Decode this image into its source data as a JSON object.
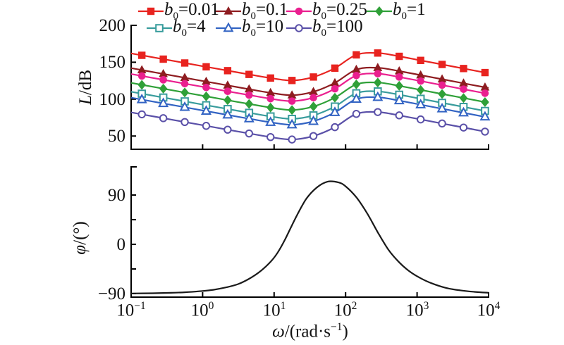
{
  "figure": {
    "background": "#ffffff",
    "text_color": "#111111",
    "axis_color": "#000000"
  },
  "x_axis": {
    "scale": "log",
    "base": "10",
    "tick_exponents": [
      -1,
      0,
      1,
      2,
      3,
      4
    ],
    "tick_labels": [
      "−1",
      "0",
      "1",
      "2",
      "3",
      "4"
    ],
    "label": {
      "var": "ω",
      "mid": "/(rad·s",
      "sup": "−1",
      "end": ")"
    }
  },
  "chart_data": [
    {
      "type": "line",
      "name": "magnitude",
      "ylabel": {
        "var": "L",
        "rest": "/dB"
      },
      "ylim": [
        32,
        200
      ],
      "yticks": [
        {
          "value": 200,
          "label": "200"
        },
        {
          "value": 150,
          "label": "150"
        },
        {
          "value": 100,
          "label": "100"
        },
        {
          "value": 50,
          "label": "50"
        }
      ],
      "endpoint_exponents": [
        -1,
        4
      ],
      "marker_exponents": [
        -0.85,
        -0.55,
        -0.25,
        0.05,
        0.35,
        0.65,
        0.95,
        1.25,
        1.55,
        1.85,
        2.15,
        2.45,
        2.75,
        3.05,
        3.35,
        3.65,
        3.95
      ],
      "series": [
        {
          "var": "b",
          "sub": "0",
          "eq": "=",
          "value": "0.01",
          "color": "#e8231f",
          "marker": "square-filled",
          "endpoints": [
            162.0,
            135.2
          ],
          "L_values": [
            159.4,
            154.2,
            149.0,
            143.8,
            138.6,
            133.5,
            128.6,
            125.3,
            130.0,
            142.0,
            160.0,
            162.5,
            158.0,
            152.5,
            147.0,
            141.5,
            136.0
          ]
        },
        {
          "var": "b",
          "sub": "0",
          "eq": "=",
          "value": "0.1",
          "color": "#8e1c20",
          "marker": "triangle-filled",
          "endpoints": [
            142.0,
            115.2
          ],
          "L_values": [
            139.4,
            134.2,
            129.0,
            123.8,
            118.6,
            113.5,
            108.6,
            105.3,
            110.0,
            122.0,
            140.0,
            142.5,
            138.0,
            132.5,
            127.0,
            121.5,
            116.0
          ]
        },
        {
          "var": "b",
          "sub": "0",
          "eq": "=",
          "value": "0.25",
          "color": "#ea1f8f",
          "marker": "circle-filled",
          "endpoints": [
            134.0,
            107.2
          ],
          "L_values": [
            131.4,
            126.2,
            121.0,
            115.8,
            110.6,
            105.5,
            100.6,
            97.3,
            102.0,
            114.0,
            132.0,
            134.5,
            130.0,
            124.5,
            119.0,
            113.5,
            108.0
          ]
        },
        {
          "var": "b",
          "sub": "0",
          "eq": "=",
          "value": "1",
          "color": "#2fa038",
          "marker": "diamond-filled",
          "endpoints": [
            122.0,
            95.2
          ],
          "L_values": [
            119.4,
            114.2,
            109.0,
            103.8,
            98.6,
            93.5,
            88.6,
            85.3,
            90.0,
            102.0,
            120.0,
            122.5,
            118.0,
            112.5,
            107.0,
            101.5,
            96.0
          ]
        },
        {
          "var": "b",
          "sub": "0",
          "eq": "=",
          "value": "4",
          "color": "#389c9c",
          "marker": "square-open",
          "endpoints": [
            110.0,
            83.2
          ],
          "L_values": [
            107.4,
            102.2,
            97.0,
            91.8,
            86.6,
            81.5,
            76.6,
            73.3,
            78.0,
            90.0,
            108.0,
            110.5,
            106.0,
            100.5,
            95.0,
            89.5,
            84.0
          ]
        },
        {
          "var": "b",
          "sub": "0",
          "eq": "=",
          "value": "10",
          "color": "#3263c3",
          "marker": "triangle-open",
          "endpoints": [
            102.0,
            75.2
          ],
          "L_values": [
            99.4,
            94.2,
            89.0,
            83.8,
            78.6,
            73.5,
            68.6,
            65.3,
            70.0,
            82.0,
            100.0,
            102.5,
            98.0,
            92.5,
            87.0,
            81.5,
            76.0
          ]
        },
        {
          "var": "b",
          "sub": "0",
          "eq": "=",
          "value": "100",
          "color": "#5a50a8",
          "marker": "circle-open",
          "endpoints": [
            82.0,
            55.2
          ],
          "L_values": [
            79.4,
            74.2,
            69.0,
            63.8,
            58.6,
            53.5,
            48.6,
            45.3,
            50.0,
            62.0,
            80.0,
            82.5,
            78.0,
            72.5,
            67.0,
            61.5,
            56.0
          ]
        }
      ]
    },
    {
      "type": "line",
      "name": "phase",
      "ylabel": {
        "var": "φ",
        "rest": "/(°)"
      },
      "ylim": [
        -96,
        141
      ],
      "yticks": [
        {
          "value": 90,
          "label": "90"
        },
        {
          "value": 0,
          "label": "0"
        },
        {
          "value": -90,
          "label": "−90"
        }
      ],
      "minor_yticks": [
        45,
        -45
      ],
      "color": "#1a1a1a",
      "points": [
        [
          -1.0,
          -89.7
        ],
        [
          -0.7,
          -89.3
        ],
        [
          -0.45,
          -88.6
        ],
        [
          -0.25,
          -87.6
        ],
        [
          -0.05,
          -85.8
        ],
        [
          0.15,
          -83.0
        ],
        [
          0.35,
          -78.0
        ],
        [
          0.5,
          -72.5
        ],
        [
          0.65,
          -63.0
        ],
        [
          0.8,
          -50.0
        ],
        [
          0.95,
          -32.0
        ],
        [
          1.05,
          -15.0
        ],
        [
          1.15,
          8.0
        ],
        [
          1.3,
          48.0
        ],
        [
          1.45,
          83.0
        ],
        [
          1.6,
          104.0
        ],
        [
          1.75,
          114.5
        ],
        [
          1.9,
          113.0
        ],
        [
          2.0,
          106.0
        ],
        [
          2.15,
          86.0
        ],
        [
          2.3,
          57.0
        ],
        [
          2.45,
          22.0
        ],
        [
          2.6,
          -10.0
        ],
        [
          2.75,
          -33.0
        ],
        [
          2.9,
          -50.0
        ],
        [
          3.05,
          -62.0
        ],
        [
          3.2,
          -71.0
        ],
        [
          3.4,
          -79.5
        ],
        [
          3.6,
          -84.0
        ],
        [
          3.8,
          -86.8
        ],
        [
          4.0,
          -88.5
        ]
      ]
    }
  ]
}
